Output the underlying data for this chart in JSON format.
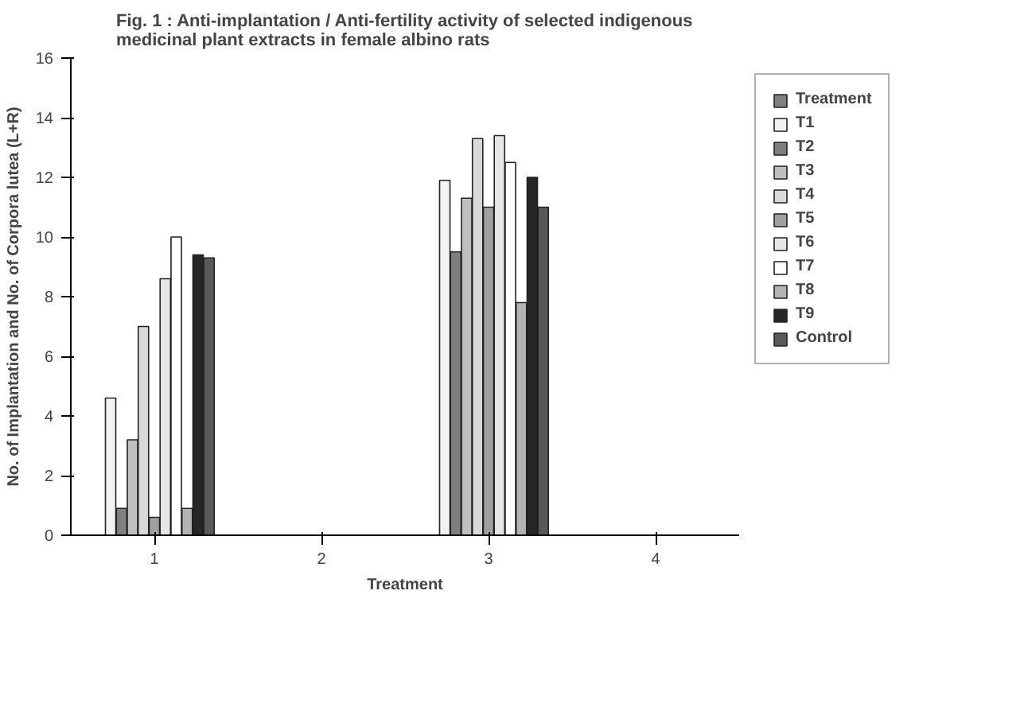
{
  "chart_data": {
    "type": "bar",
    "title": "Fig. 1 : Anti-implantation / Anti-fertility activity of selected indigenous medicinal plant extracts in female albino rats",
    "xlabel": "Treatment",
    "ylabel": "No. of Implantation and No. of Corpora lutea (L+R)",
    "categories": [
      "1",
      "2",
      "3",
      "4"
    ],
    "series": [
      {
        "name": "Treatment",
        "color": "#808080",
        "values": [
          null,
          null,
          null,
          null
        ]
      },
      {
        "name": "T1",
        "color": "#f2f2f2",
        "values": [
          4.6,
          null,
          11.9,
          null
        ]
      },
      {
        "name": "T2",
        "color": "#7f7f7f",
        "values": [
          0.9,
          null,
          9.5,
          null
        ]
      },
      {
        "name": "T3",
        "color": "#bfbfbf",
        "values": [
          3.2,
          null,
          11.3,
          null
        ]
      },
      {
        "name": "T4",
        "color": "#d9d9d9",
        "values": [
          7.0,
          null,
          13.3,
          null
        ]
      },
      {
        "name": "T5",
        "color": "#a0a0a0",
        "values": [
          0.6,
          null,
          11.0,
          null
        ]
      },
      {
        "name": "T6",
        "color": "#e6e6e6",
        "values": [
          8.6,
          null,
          13.4,
          null
        ]
      },
      {
        "name": "T7",
        "color": "#ffffff",
        "values": [
          10.0,
          null,
          12.5,
          null
        ]
      },
      {
        "name": "T8",
        "color": "#b3b3b3",
        "values": [
          0.9,
          null,
          7.8,
          null
        ]
      },
      {
        "name": "T9",
        "color": "#262626",
        "values": [
          9.4,
          null,
          12.0,
          null
        ]
      },
      {
        "name": "Control",
        "color": "#595959",
        "values": [
          9.3,
          null,
          11.0,
          null
        ]
      }
    ],
    "ylim": [
      0,
      16
    ],
    "yticks": [
      0,
      2,
      4,
      6,
      8,
      10,
      12,
      14,
      16
    ],
    "grid": false,
    "legend": "right"
  }
}
